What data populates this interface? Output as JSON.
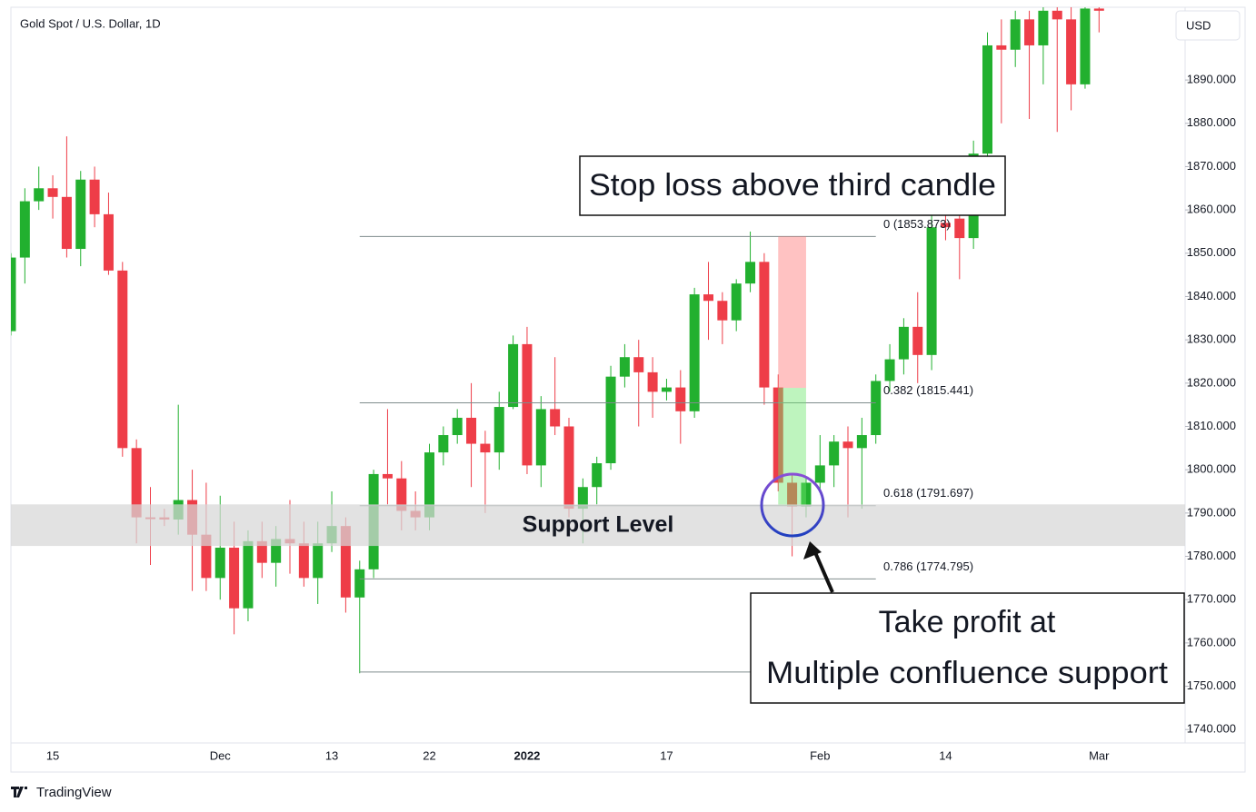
{
  "chart_data": {
    "type": "candlestick",
    "title": "Gold Spot / U.S. Dollar, 1D",
    "currency": "USD",
    "brand": "TradingView",
    "up_color": "#22b02f",
    "down_color": "#ee3d48",
    "categories": [
      null,
      null,
      null,
      "15",
      null,
      null,
      null,
      null,
      null,
      null,
      null,
      null,
      null,
      null,
      null,
      "Dec",
      null,
      null,
      null,
      null,
      null,
      null,
      null,
      "13",
      null,
      null,
      null,
      null,
      null,
      null,
      "22",
      null,
      null,
      null,
      null,
      null,
      null,
      "2022",
      null,
      null,
      null,
      null,
      null,
      null,
      null,
      null,
      null,
      "17",
      null,
      null,
      null,
      null,
      null,
      null,
      null,
      null,
      null,
      null,
      "Feb",
      null,
      null,
      null,
      null,
      null,
      null,
      null,
      null,
      "14",
      null,
      null,
      null,
      null,
      null,
      null,
      null,
      null,
      null,
      null,
      "Mar"
    ],
    "open": [
      1832,
      1849,
      1862,
      1865,
      1863,
      1851,
      1867,
      1859,
      1846,
      1805,
      1789,
      1789,
      1788.5,
      1793,
      1785,
      1775,
      1782,
      1768,
      1783.5,
      1778.5,
      1784,
      1783,
      1775,
      1783,
      1787,
      1770.5,
      1777,
      1799,
      1798,
      1790.5,
      1789,
      1804,
      1808,
      1812,
      1806,
      1804,
      1814.5,
      1829,
      1801,
      1814,
      1810,
      1791,
      1796,
      1801.5,
      1821.5,
      1826,
      1822.5,
      1818,
      1819,
      1813.5,
      1840.5,
      1839,
      1834.5,
      1843,
      1848,
      1819,
      1797,
      1791.5,
      1797,
      1801,
      1806.5,
      1805,
      1808,
      1820.5,
      1825.5,
      1833,
      1826.5,
      1857,
      1858,
      1853.5,
      1873,
      1898,
      1897,
      1904,
      1898,
      1906,
      1904,
      1889,
      1906.5
    ],
    "high": [
      1850,
      1865,
      1870,
      1868,
      1877,
      1869,
      1870,
      1864,
      1848,
      1807,
      1796,
      1791,
      1815,
      1800,
      1797,
      1794,
      1788,
      1786,
      1788,
      1787,
      1793,
      1788,
      1788,
      1795,
      1789,
      1779,
      1800,
      1814,
      1802,
      1795,
      1806,
      1810,
      1814,
      1820,
      1809,
      1818,
      1831,
      1833,
      1817,
      1826,
      1812,
      1798,
      1803,
      1824,
      1829,
      1830,
      1826,
      1821,
      1823,
      1842,
      1848,
      1841,
      1844,
      1855,
      1850,
      1822,
      1799,
      1798.5,
      1808,
      1808,
      1810,
      1812,
      1822,
      1829,
      1835,
      1841,
      1860,
      1862,
      1865,
      1876,
      1901,
      1904,
      1906,
      1906,
      1906.8,
      1906.8,
      1906.8,
      1906.8,
      1906.8
    ],
    "low": [
      1831,
      1843,
      1860,
      1858,
      1849,
      1847,
      1856,
      1845,
      1803,
      1783,
      1778,
      1787,
      1785,
      1772,
      1772,
      1770,
      1762,
      1765,
      1775,
      1773,
      1776,
      1773,
      1769,
      1781,
      1767,
      1753,
      1775,
      1792,
      1786,
      1786,
      1786,
      1801,
      1806,
      1796,
      1790,
      1800,
      1814,
      1799,
      1796,
      1808,
      1789,
      1783,
      1792,
      1800,
      1819,
      1810,
      1812,
      1816,
      1806,
      1812,
      1830,
      1829,
      1832,
      1841,
      1815,
      1795,
      1780,
      1789,
      1795,
      1796,
      1789,
      1791,
      1806,
      1818,
      1822,
      1820,
      1823,
      1853,
      1844,
      1851,
      1870,
      1880,
      1893,
      1881,
      1889,
      1878,
      1883,
      1888,
      1901
    ],
    "close": [
      1849,
      1862,
      1865,
      1863,
      1851,
      1867,
      1859,
      1846,
      1805,
      1789,
      1788.6,
      1788.5,
      1793,
      1785,
      1775,
      1782,
      1768,
      1783.5,
      1778.5,
      1784,
      1783,
      1775,
      1783,
      1787,
      1770.5,
      1777,
      1799,
      1798,
      1790.5,
      1789,
      1804,
      1808,
      1812,
      1806,
      1804,
      1814.5,
      1829,
      1801,
      1814,
      1810,
      1791,
      1796,
      1801.5,
      1821.5,
      1826,
      1822.5,
      1818,
      1819,
      1813.5,
      1840.5,
      1839,
      1834.5,
      1843,
      1848,
      1819,
      1797,
      1791.5,
      1797,
      1801,
      1806.5,
      1805,
      1808,
      1820.5,
      1825.5,
      1833,
      1826.5,
      1856,
      1856,
      1853.5,
      1873,
      1898,
      1897,
      1904,
      1898,
      1906,
      1904,
      1889,
      1906.5,
      1906
    ],
    "ylim": [
      1736.9,
      1906.8
    ],
    "yticks": [
      {
        "value": 1740,
        "label": "1740.000"
      },
      {
        "value": 1750,
        "label": "1750.000"
      },
      {
        "value": 1760,
        "label": "1760.000"
      },
      {
        "value": 1770,
        "label": "1770.000"
      },
      {
        "value": 1780,
        "label": "1780.000"
      },
      {
        "value": 1790,
        "label": "1790.000"
      },
      {
        "value": 1800,
        "label": "1800.000"
      },
      {
        "value": 1810,
        "label": "1810.000"
      },
      {
        "value": 1820,
        "label": "1820.000"
      },
      {
        "value": 1830,
        "label": "1830.000"
      },
      {
        "value": 1840,
        "label": "1840.000"
      },
      {
        "value": 1850,
        "label": "1850.000"
      },
      {
        "value": 1860,
        "label": "1860.000"
      },
      {
        "value": 1870,
        "label": "1870.000"
      },
      {
        "value": 1880,
        "label": "1880.000"
      },
      {
        "value": 1890,
        "label": "1890.000"
      }
    ],
    "fib_levels": [
      {
        "label": "0 (1853.873)",
        "value": 1853.873
      },
      {
        "label": "0.382 (1815.441)",
        "value": 1815.441
      },
      {
        "label": "0.618 (1791.697)",
        "value": 1791.697
      },
      {
        "label": "0.786 (1774.795)",
        "value": 1774.795
      },
      {
        "value": 1753.3
      }
    ],
    "support": {
      "label": "Support Level",
      "range": [
        1782.4,
        1792
      ]
    },
    "trade": {
      "stop": 1853.873,
      "entry": 1818.9,
      "target": 1791.697
    },
    "annotations": {
      "stop_loss": "Stop loss above third candle",
      "take_profit": [
        "Take profit at",
        "Multiple confluence support"
      ]
    }
  }
}
